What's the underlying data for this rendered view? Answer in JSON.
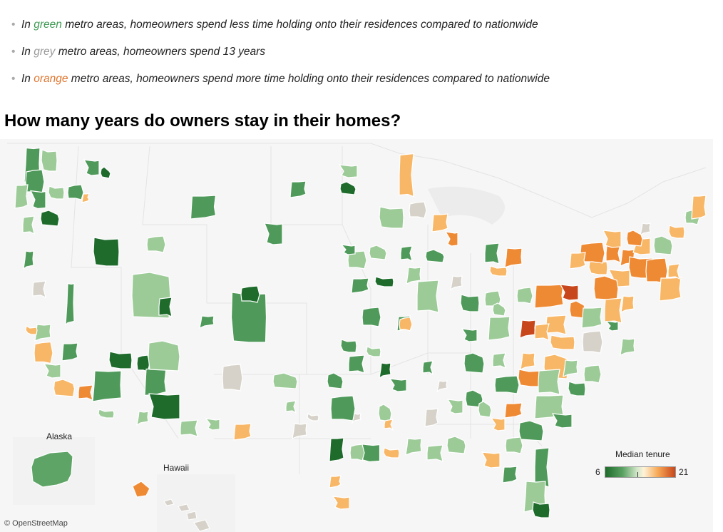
{
  "bullets": [
    {
      "prefix": "In ",
      "color_word": "green",
      "suffix": " metro areas, homeowners spend less time holding onto their residences compared to nationwide"
    },
    {
      "prefix": "In ",
      "color_word": "grey",
      "suffix": " metro areas, homeowners spend 13 years"
    },
    {
      "prefix": "In ",
      "color_word": "orange",
      "suffix": " metro areas, homeowners spend more time holding onto their residences compared to nationwide"
    }
  ],
  "title": "How many years do owners stay in their homes?",
  "insets": {
    "alaska": "Alaska",
    "hawaii": "Hawaii"
  },
  "credit": "© OpenStreetMap",
  "legend": {
    "title": "Median tenure",
    "min": "6",
    "max": "21"
  },
  "colors": {
    "dark_green": "#1e6b2c",
    "green": "#4f9a5a",
    "light_green": "#9ccb98",
    "grey": "#d6d2c9",
    "light_orange": "#f8b766",
    "orange": "#ef8a34",
    "dark_orange": "#c8461b",
    "land": "#f5f5f5",
    "border": "#ffffff"
  }
}
